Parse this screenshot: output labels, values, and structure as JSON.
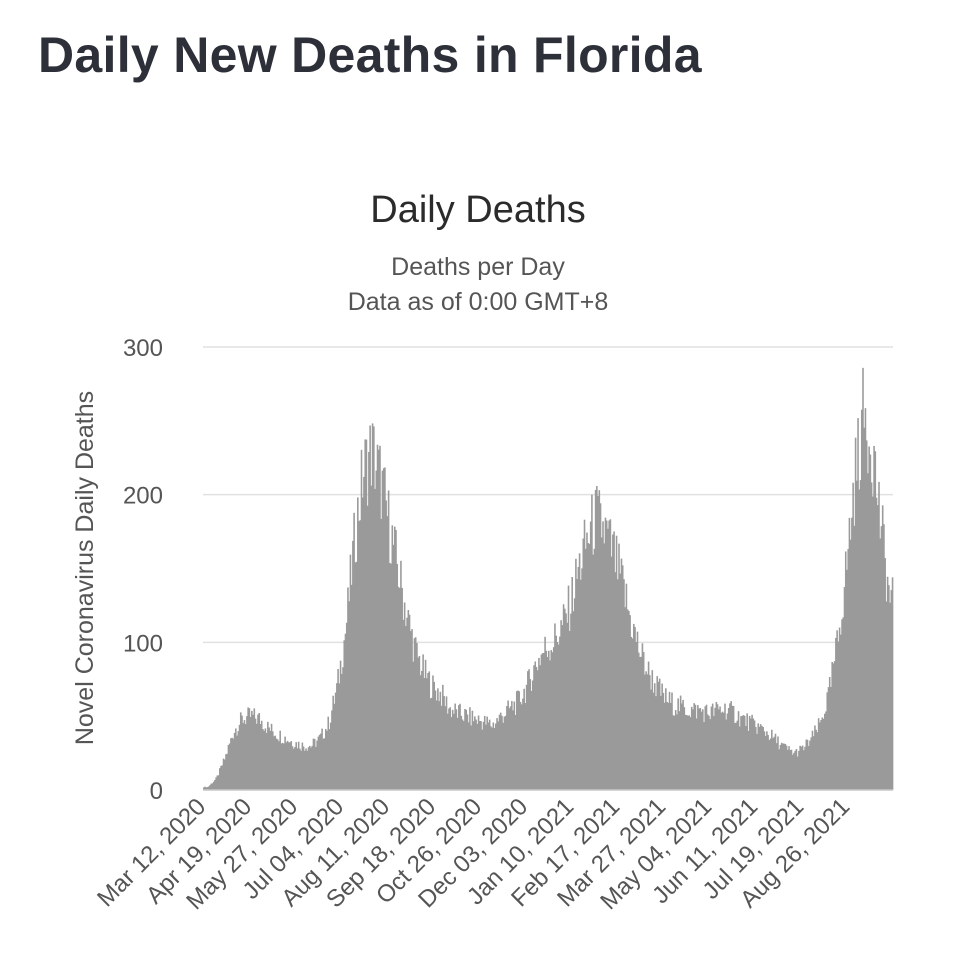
{
  "page": {
    "title": "Daily New Deaths in Florida"
  },
  "chart_data": {
    "type": "bar",
    "title": "Daily Deaths",
    "subtitle": [
      "Deaths per Day",
      "Data as of 0:00 GMT+8"
    ],
    "ylabel": "Novel Coronavirus Daily Deaths",
    "xlabel": "",
    "ylim": [
      0,
      300
    ],
    "yticks": [
      0,
      100,
      200,
      300
    ],
    "grid": true,
    "x_tick_labels": [
      "Mar 12, 2020",
      "Apr 19, 2020",
      "May 27, 2020",
      "Jul 04, 2020",
      "Aug 11, 2020",
      "Sep 18, 2020",
      "Oct 26, 2020",
      "Dec 03, 2020",
      "Jan 10, 2021",
      "Feb 17, 2021",
      "Mar 27, 2021",
      "May 04, 2021",
      "Jun 11, 2021",
      "Jul 19, 2021",
      "Aug 26, 2021"
    ],
    "color": "#9a9a9a",
    "series": [
      {
        "name": "Daily Deaths",
        "weekly_avg": [
          2,
          8,
          22,
          40,
          48,
          50,
          48,
          42,
          38,
          35,
          32,
          30,
          30,
          35,
          45,
          70,
          110,
          170,
          215,
          230,
          210,
          180,
          150,
          120,
          95,
          80,
          70,
          65,
          55,
          52,
          50,
          48,
          46,
          44,
          50,
          55,
          60,
          70,
          85,
          95,
          100,
          110,
          125,
          150,
          170,
          185,
          175,
          160,
          140,
          115,
          95,
          80,
          70,
          62,
          58,
          56,
          54,
          54,
          52,
          54,
          55,
          52,
          48,
          45,
          42,
          38,
          33,
          28,
          25,
          28,
          35,
          45,
          65,
          100,
          150,
          210,
          255,
          235,
          180,
          130
        ]
      }
    ]
  }
}
